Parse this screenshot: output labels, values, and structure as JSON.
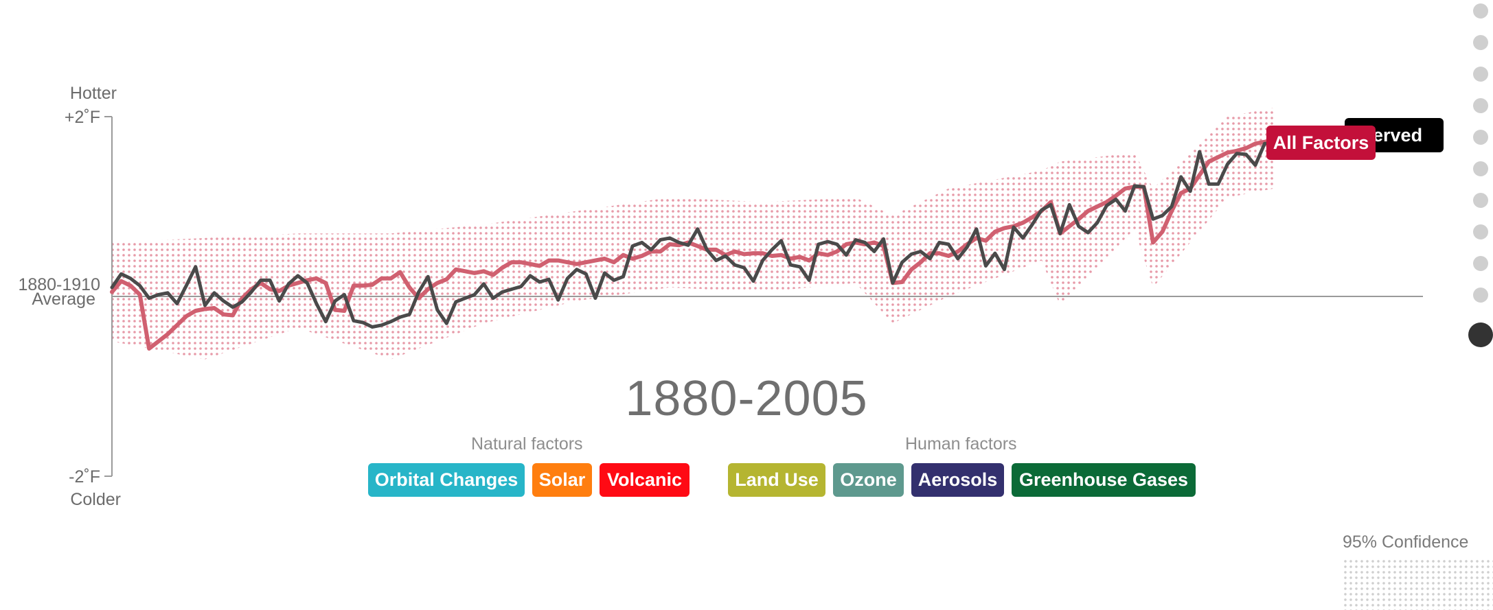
{
  "chart_data": {
    "type": "line",
    "title": "1880-2005",
    "y_axis": {
      "top_label": "Hotter",
      "top_tick": "+2˚F",
      "baseline_label_line1": "1880-1910",
      "baseline_label_line2": "Average",
      "bottom_tick": "-2˚F",
      "bottom_label": "Colder",
      "ylim": [
        -2,
        2
      ]
    },
    "xlim": [
      1880,
      2005
    ],
    "series": [
      {
        "name": "Observed",
        "color": "#4a4a4a",
        "x": [
          1880,
          1881,
          1882,
          1883,
          1884,
          1885,
          1886,
          1887,
          1888,
          1889,
          1890,
          1891,
          1892,
          1893,
          1894,
          1895,
          1896,
          1897,
          1898,
          1899,
          1900,
          1901,
          1902,
          1903,
          1904,
          1905,
          1906,
          1907,
          1908,
          1909,
          1910,
          1911,
          1912,
          1913,
          1914,
          1915,
          1916,
          1917,
          1918,
          1919,
          1920,
          1921,
          1922,
          1923,
          1924,
          1925,
          1926,
          1927,
          1928,
          1929,
          1930,
          1931,
          1932,
          1933,
          1934,
          1935,
          1936,
          1937,
          1938,
          1939,
          1940,
          1941,
          1942,
          1943,
          1944,
          1945,
          1946,
          1947,
          1948,
          1949,
          1950,
          1951,
          1952,
          1953,
          1954,
          1955,
          1956,
          1957,
          1958,
          1959,
          1960,
          1961,
          1962,
          1963,
          1964,
          1965,
          1966,
          1967,
          1968,
          1969,
          1970,
          1971,
          1972,
          1973,
          1974,
          1975,
          1976,
          1977,
          1978,
          1979,
          1980,
          1981,
          1982,
          1983,
          1984,
          1985,
          1986,
          1987,
          1988,
          1989,
          1990,
          1991,
          1992,
          1993,
          1994,
          1995,
          1996,
          1997,
          1998,
          1999,
          2000,
          2001,
          2002,
          2003,
          2004,
          2005
        ],
        "values": [
          0.1,
          0.25,
          0.2,
          0.12,
          -0.02,
          0.02,
          0.04,
          -0.08,
          0.12,
          0.33,
          -0.1,
          0.04,
          -0.05,
          -0.12,
          -0.06,
          0.05,
          0.18,
          0.18,
          -0.05,
          0.14,
          0.23,
          0.15,
          -0.08,
          -0.28,
          -0.05,
          0.02,
          -0.27,
          -0.29,
          -0.34,
          -0.32,
          -0.28,
          -0.23,
          -0.2,
          0.05,
          0.22,
          -0.15,
          -0.3,
          -0.06,
          -0.02,
          0.02,
          0.14,
          -0.02,
          0.05,
          0.08,
          0.11,
          0.23,
          0.16,
          0.19,
          -0.04,
          0.2,
          0.3,
          0.25,
          -0.02,
          0.26,
          0.18,
          0.22,
          0.56,
          0.6,
          0.52,
          0.63,
          0.65,
          0.6,
          0.57,
          0.75,
          0.52,
          0.4,
          0.45,
          0.35,
          0.32,
          0.17,
          0.4,
          0.52,
          0.62,
          0.35,
          0.33,
          0.18,
          0.58,
          0.61,
          0.58,
          0.46,
          0.63,
          0.6,
          0.5,
          0.64,
          0.15,
          0.38,
          0.47,
          0.5,
          0.42,
          0.6,
          0.58,
          0.42,
          0.55,
          0.75,
          0.34,
          0.48,
          0.3,
          0.77,
          0.65,
          0.8,
          0.96,
          1.02,
          0.7,
          1.02,
          0.78,
          0.71,
          0.82,
          1.01,
          1.08,
          0.95,
          1.23,
          1.22,
          0.86,
          0.9,
          1.0,
          1.33,
          1.17,
          1.61,
          1.25,
          1.25,
          1.47,
          1.59,
          1.58,
          1.46,
          1.7,
          1.7
        ]
      },
      {
        "name": "All Factors",
        "color": "#d06070",
        "x": [
          1880,
          1881,
          1882,
          1883,
          1884,
          1885,
          1886,
          1887,
          1888,
          1889,
          1890,
          1891,
          1892,
          1893,
          1894,
          1895,
          1896,
          1897,
          1898,
          1899,
          1900,
          1901,
          1902,
          1903,
          1904,
          1905,
          1906,
          1907,
          1908,
          1909,
          1910,
          1911,
          1912,
          1913,
          1914,
          1915,
          1916,
          1917,
          1918,
          1919,
          1920,
          1921,
          1922,
          1923,
          1924,
          1925,
          1926,
          1927,
          1928,
          1929,
          1930,
          1931,
          1932,
          1933,
          1934,
          1935,
          1936,
          1937,
          1938,
          1939,
          1940,
          1941,
          1942,
          1943,
          1944,
          1945,
          1946,
          1947,
          1948,
          1949,
          1950,
          1951,
          1952,
          1953,
          1954,
          1955,
          1956,
          1957,
          1958,
          1959,
          1960,
          1961,
          1962,
          1963,
          1964,
          1965,
          1966,
          1967,
          1968,
          1969,
          1970,
          1971,
          1972,
          1973,
          1974,
          1975,
          1976,
          1977,
          1978,
          1979,
          1980,
          1981,
          1982,
          1983,
          1984,
          1985,
          1986,
          1987,
          1988,
          1989,
          1990,
          1991,
          1992,
          1993,
          1994,
          1995,
          1996,
          1997,
          1998,
          1999,
          2000,
          2001,
          2002,
          2003,
          2004,
          2005
        ],
        "values": [
          0.05,
          0.17,
          0.12,
          0.02,
          -0.58,
          -0.5,
          -0.42,
          -0.32,
          -0.22,
          -0.16,
          -0.14,
          -0.13,
          -0.2,
          -0.21,
          -0.02,
          0.08,
          0.15,
          0.08,
          0.06,
          0.12,
          0.15,
          0.18,
          0.2,
          0.15,
          -0.15,
          -0.16,
          0.12,
          0.12,
          0.13,
          0.2,
          0.2,
          0.27,
          0.1,
          -0.02,
          0.08,
          0.15,
          0.19,
          0.3,
          0.28,
          0.26,
          0.28,
          0.24,
          0.32,
          0.38,
          0.38,
          0.36,
          0.34,
          0.4,
          0.4,
          0.38,
          0.36,
          0.38,
          0.4,
          0.42,
          0.38,
          0.46,
          0.42,
          0.45,
          0.5,
          0.5,
          0.58,
          0.57,
          0.6,
          0.56,
          0.52,
          0.52,
          0.46,
          0.5,
          0.47,
          0.48,
          0.48,
          0.45,
          0.46,
          0.42,
          0.44,
          0.4,
          0.48,
          0.46,
          0.5,
          0.58,
          0.6,
          0.58,
          0.6,
          0.56,
          0.15,
          0.16,
          0.3,
          0.38,
          0.48,
          0.48,
          0.45,
          0.5,
          0.58,
          0.65,
          0.62,
          0.72,
          0.76,
          0.78,
          0.82,
          0.88,
          0.95,
          1.05,
          0.7,
          0.78,
          0.86,
          0.95,
          1.0,
          1.05,
          1.12,
          1.2,
          1.22,
          1.22,
          0.6,
          0.72,
          0.95,
          1.15,
          1.2,
          1.35,
          1.5,
          1.55,
          1.6,
          1.62,
          1.65,
          1.7,
          1.72,
          1.72
        ]
      }
    ],
    "confidence_band": {
      "name": "95% Confidence",
      "x": [
        1880,
        1890,
        1900,
        1910,
        1920,
        1930,
        1940,
        1950,
        1960,
        1964,
        1970,
        1980,
        1982,
        1990,
        1992,
        2000,
        2005
      ],
      "lower": [
        -0.5,
        -0.7,
        -0.35,
        -0.7,
        -0.3,
        -0.05,
        0.1,
        0.05,
        0.15,
        -0.3,
        0.0,
        0.4,
        -0.1,
        0.75,
        0.1,
        1.1,
        1.2
      ],
      "upper": [
        0.6,
        0.65,
        0.7,
        0.7,
        0.8,
        0.95,
        1.1,
        1.05,
        1.1,
        0.9,
        1.2,
        1.4,
        1.5,
        1.6,
        1.2,
        2.0,
        2.1
      ]
    },
    "baseline_value": 0
  },
  "series_tags": [
    {
      "name": "All Factors",
      "color": "#c3103a"
    },
    {
      "name": "Observed",
      "visible_text": "served",
      "color": "#000000"
    }
  ],
  "factor_groups": {
    "natural_heading": "Natural factors",
    "human_heading": "Human factors",
    "natural": [
      {
        "label": "Orbital Changes",
        "color": "#27b5c8"
      },
      {
        "label": "Solar",
        "color": "#ff7e0f"
      },
      {
        "label": "Volcanic",
        "color": "#ff0a14"
      }
    ],
    "human": [
      {
        "label": "Land Use",
        "color": "#b5b531"
      },
      {
        "label": "Ozone",
        "color": "#5e998e"
      },
      {
        "label": "Aerosols",
        "color": "#33306e"
      },
      {
        "label": "Greenhouse Gases",
        "color": "#0b6a37"
      }
    ]
  },
  "legend": {
    "confidence_label": "95% Confidence",
    "confidence_color": "#cfcfcf"
  },
  "nav_dots": {
    "count": 11,
    "active_index": 10
  },
  "colors": {
    "axis": "#9a9a9a",
    "band_dot": "#e79aa8"
  }
}
